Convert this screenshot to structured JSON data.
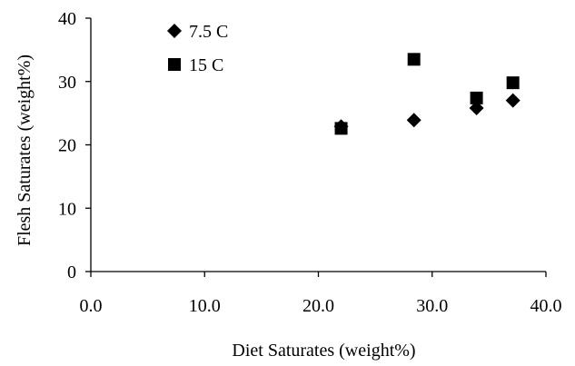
{
  "chart_data": {
    "type": "scatter",
    "title": "",
    "xlabel": "Diet Saturates (weight%)",
    "ylabel": "Flesh Saturates (weight%)",
    "xlim": [
      0,
      40
    ],
    "ylim": [
      0,
      40
    ],
    "xticks": [
      "0.0",
      "10.0",
      "20.0",
      "30.0",
      "40.0"
    ],
    "yticks": [
      "0",
      "10",
      "20",
      "30",
      "40"
    ],
    "grid": false,
    "legend": "top-left",
    "series": [
      {
        "name": "7.5 C",
        "marker": "diamond",
        "color": "#000000",
        "points": [
          {
            "x": 22.0,
            "y": 22.9
          },
          {
            "x": 28.4,
            "y": 23.9
          },
          {
            "x": 33.9,
            "y": 25.8
          },
          {
            "x": 37.1,
            "y": 27.0
          }
        ]
      },
      {
        "name": "15 C",
        "marker": "square",
        "color": "#000000",
        "points": [
          {
            "x": 22.0,
            "y": 22.6
          },
          {
            "x": 28.4,
            "y": 33.5
          },
          {
            "x": 33.9,
            "y": 27.4
          },
          {
            "x": 37.1,
            "y": 29.8
          }
        ]
      }
    ]
  }
}
